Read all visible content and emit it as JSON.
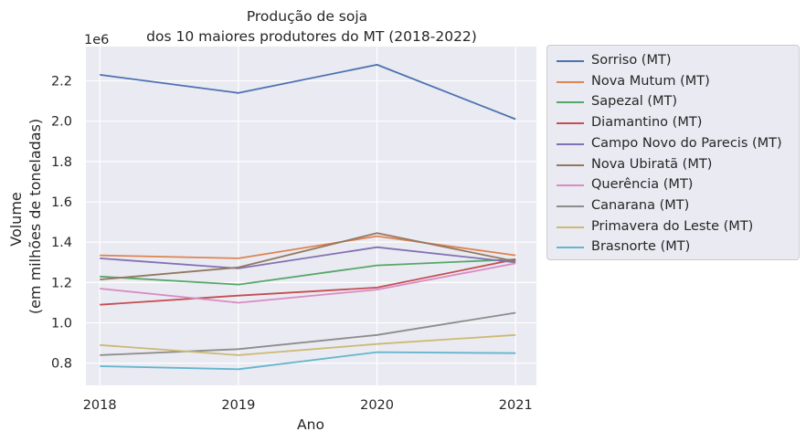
{
  "chart_data": {
    "type": "line",
    "title_lines": [
      "Produção de soja",
      "dos 10 maiores produtores do MT (2018-2022)"
    ],
    "xlabel": "Ano",
    "ylabel_lines": [
      "Volume",
      "(em milhões de toneladas)"
    ],
    "y_offset_label": "1e6",
    "x": [
      "2018",
      "2019",
      "2020",
      "2021"
    ],
    "xlim": [
      2017.9,
      2021.15
    ],
    "ylim": [
      0.69,
      2.37
    ],
    "y_scale": 1000000,
    "yticks": [
      "0.8",
      "1.0",
      "1.2",
      "1.4",
      "1.6",
      "1.8",
      "2.0",
      "2.2"
    ],
    "grid": true,
    "legend_position": "outside-right",
    "series": [
      {
        "name": "Sorriso (MT)",
        "color": "#4c72b0",
        "values": [
          2.23,
          2.14,
          2.28,
          2.01
        ]
      },
      {
        "name": "Nova Mutum (MT)",
        "color": "#dd8452",
        "values": [
          1.335,
          1.32,
          1.43,
          1.335
        ]
      },
      {
        "name": "Sapezal (MT)",
        "color": "#55a868",
        "values": [
          1.23,
          1.19,
          1.285,
          1.315
        ]
      },
      {
        "name": "Diamantino (MT)",
        "color": "#c44e52",
        "values": [
          1.09,
          1.135,
          1.175,
          1.315
        ]
      },
      {
        "name": "Campo Novo do Parecis (MT)",
        "color": "#8172b3",
        "values": [
          1.32,
          1.27,
          1.375,
          1.3
        ]
      },
      {
        "name": "Nova Ubiratã (MT)",
        "color": "#937860",
        "values": [
          1.215,
          1.275,
          1.445,
          1.305
        ]
      },
      {
        "name": "Querência (MT)",
        "color": "#da8bc3",
        "values": [
          1.17,
          1.1,
          1.165,
          1.295
        ]
      },
      {
        "name": "Canarana (MT)",
        "color": "#8c8c8c",
        "values": [
          0.84,
          0.87,
          0.94,
          1.05
        ]
      },
      {
        "name": "Primavera do Leste (MT)",
        "color": "#ccb974",
        "values": [
          0.89,
          0.84,
          0.895,
          0.94
        ]
      },
      {
        "name": "Brasnorte (MT)",
        "color": "#64b5cd",
        "values": [
          0.785,
          0.77,
          0.855,
          0.85
        ]
      }
    ]
  }
}
